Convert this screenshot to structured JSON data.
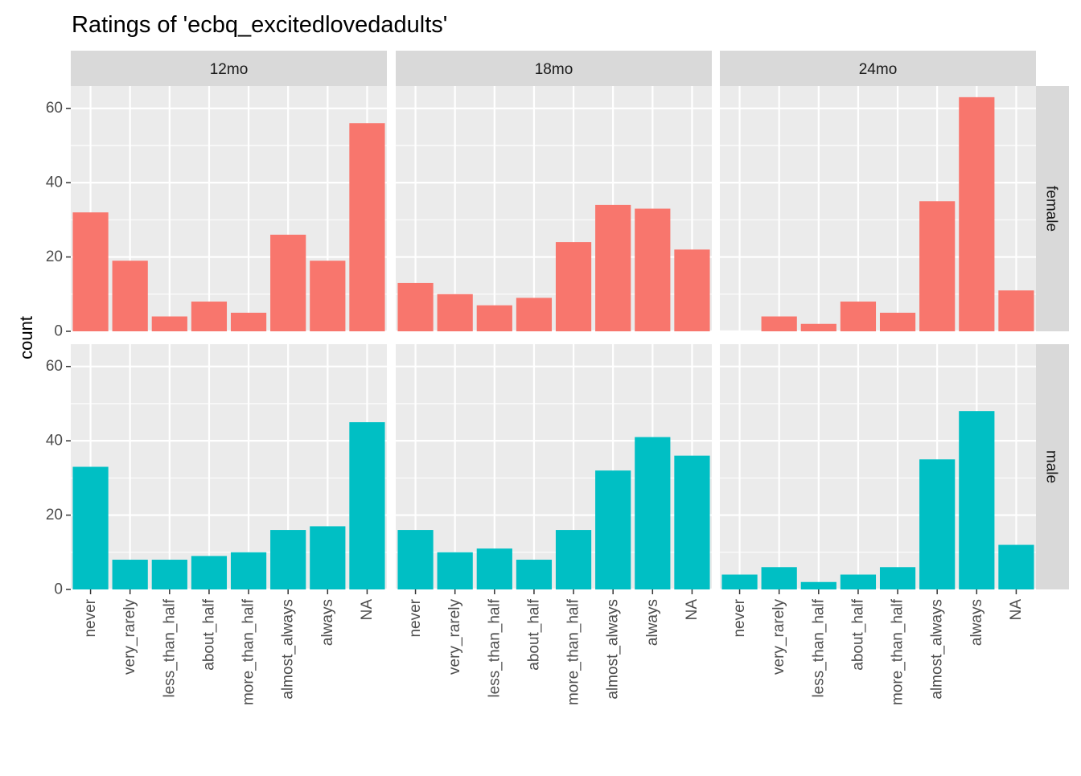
{
  "chart_data": {
    "type": "bar",
    "title": "Ratings of 'ecbq_excitedlovedadults'",
    "xlabel": "",
    "ylabel": "count",
    "ylim": [
      0,
      66
    ],
    "yticks": [
      0,
      20,
      40,
      60
    ],
    "grid": true,
    "categories": [
      "never",
      "very_rarely",
      "less_than_half",
      "about_half",
      "more_than_half",
      "almost_always",
      "always",
      "NA"
    ],
    "columns": [
      "12mo",
      "18mo",
      "24mo"
    ],
    "rows": [
      "female",
      "male"
    ],
    "row_colors": {
      "female": "#F8766D",
      "male": "#00BFC4"
    },
    "panels": [
      {
        "column": "12mo",
        "row": "female",
        "values": [
          32,
          19,
          4,
          8,
          5,
          26,
          19,
          56
        ]
      },
      {
        "column": "18mo",
        "row": "female",
        "values": [
          13,
          10,
          7,
          9,
          24,
          34,
          33,
          22
        ]
      },
      {
        "column": "24mo",
        "row": "female",
        "values": [
          0,
          4,
          2,
          8,
          5,
          35,
          63,
          11
        ]
      },
      {
        "column": "12mo",
        "row": "male",
        "values": [
          33,
          8,
          8,
          9,
          10,
          16,
          17,
          45
        ]
      },
      {
        "column": "18mo",
        "row": "male",
        "values": [
          16,
          10,
          11,
          8,
          16,
          32,
          41,
          36
        ]
      },
      {
        "column": "24mo",
        "row": "male",
        "values": [
          4,
          6,
          2,
          4,
          6,
          35,
          48,
          12
        ]
      }
    ]
  }
}
